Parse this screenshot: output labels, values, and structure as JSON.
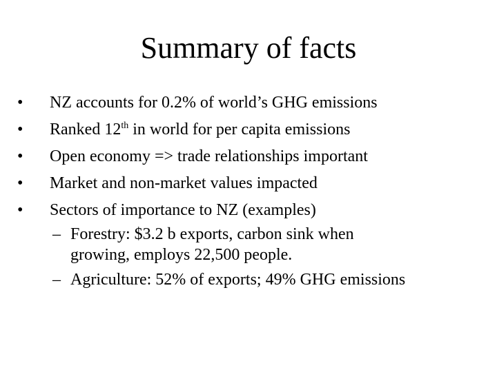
{
  "slide": {
    "title": "Summary of facts",
    "bullet_marker": "•",
    "sub_marker": "–",
    "bullets": [
      {
        "text": "NZ accounts for 0.2% of world’s GHG emissions"
      },
      {
        "text_before": "Ranked 12",
        "superscript": "th",
        "text_after": " in world for per capita emissions"
      },
      {
        "text": "Open economy => trade relationships important"
      },
      {
        "text": "Market and non-market values impacted"
      },
      {
        "text": "Sectors of importance to NZ (examples)"
      }
    ],
    "sub_bullets": [
      {
        "line1": "Forestry: $3.2 b exports, carbon sink when",
        "line2": "growing, employs 22,500 people."
      },
      {
        "line1": "Agriculture: 52% of exports; 49% GHG emissions"
      }
    ]
  }
}
